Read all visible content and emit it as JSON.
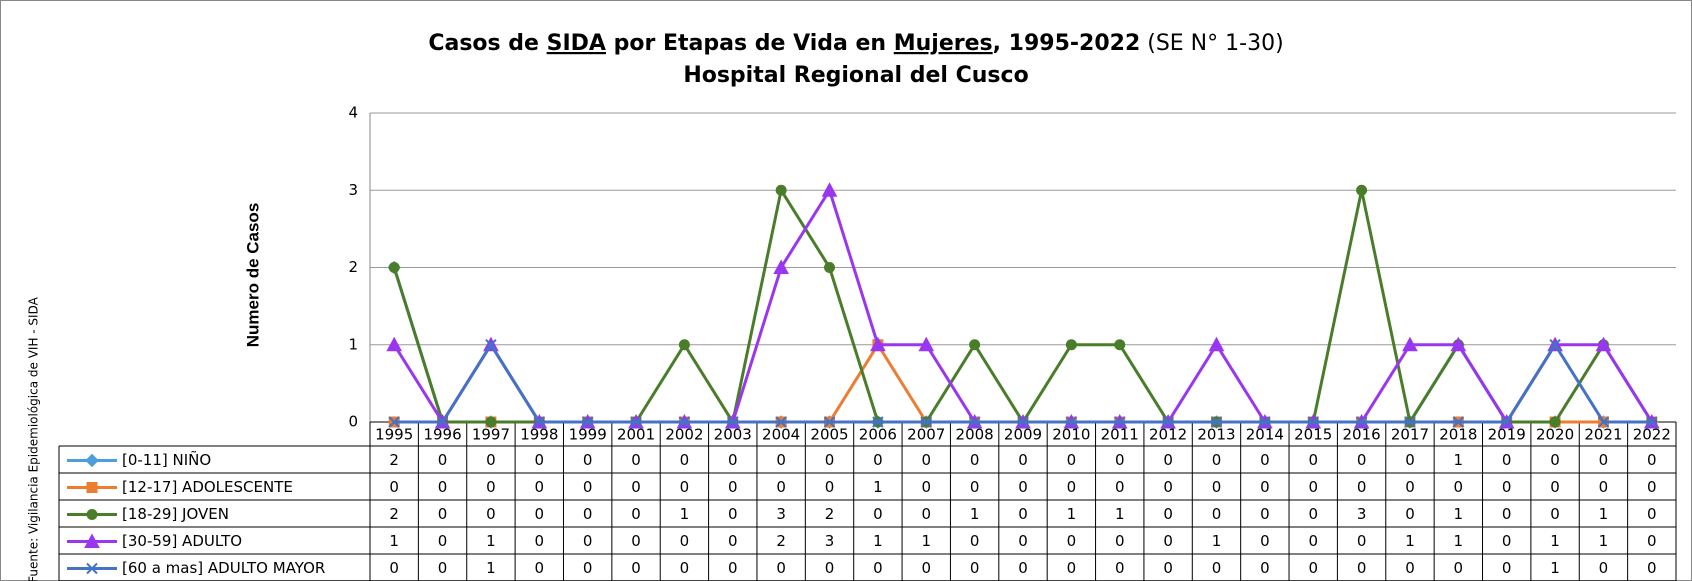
{
  "chart_data": {
    "type": "line",
    "title_segments": [
      "Casos de ",
      "SIDA",
      " por Etapas de Vida en ",
      "Mujeres",
      ", 1995-2022",
      " (SE N° 1-30)"
    ],
    "subtitle": "Hospital Regional del Cusco",
    "y_label": "Numero de Casos",
    "source": "Fuente: Vigilancia Epidemiológica de VIH - SIDA",
    "categories": [
      "1995",
      "1996",
      "1997",
      "1998",
      "1999",
      "2001",
      "2002",
      "2003",
      "2004",
      "2005",
      "2006",
      "2007",
      "2008",
      "2009",
      "2010",
      "2011",
      "2012",
      "2013",
      "2014",
      "2015",
      "2016",
      "2017",
      "2018",
      "2019",
      "2020",
      "2021",
      "2022"
    ],
    "ylim": [
      0,
      4
    ],
    "yticks": [
      0,
      1,
      2,
      3,
      4
    ],
    "grid": true,
    "series": [
      {
        "name": "[0-11] NIÑO",
        "color": "#4a9fdc",
        "marker": "diamond",
        "values": [
          2,
          0,
          0,
          0,
          0,
          0,
          0,
          0,
          0,
          0,
          0,
          0,
          0,
          0,
          0,
          0,
          0,
          0,
          0,
          0,
          0,
          0,
          1,
          0,
          0,
          0,
          0
        ]
      },
      {
        "name": "[12-17] ADOLESCENTE",
        "color": "#ed7d31",
        "marker": "square",
        "values": [
          0,
          0,
          0,
          0,
          0,
          0,
          0,
          0,
          0,
          0,
          1,
          0,
          0,
          0,
          0,
          0,
          0,
          0,
          0,
          0,
          0,
          0,
          0,
          0,
          0,
          0,
          0
        ]
      },
      {
        "name": "[18-29] JOVEN",
        "color": "#4a7d2a",
        "marker": "circle",
        "values": [
          2,
          0,
          0,
          0,
          0,
          0,
          1,
          0,
          3,
          2,
          0,
          0,
          1,
          0,
          1,
          1,
          0,
          0,
          0,
          0,
          3,
          0,
          1,
          0,
          0,
          1,
          0
        ]
      },
      {
        "name": "[30-59] ADULTO",
        "color": "#9b36f0",
        "marker": "triangle",
        "values": [
          1,
          0,
          1,
          0,
          0,
          0,
          0,
          0,
          2,
          3,
          1,
          1,
          0,
          0,
          0,
          0,
          0,
          1,
          0,
          0,
          0,
          1,
          1,
          0,
          1,
          1,
          0
        ]
      },
      {
        "name": "[60 a mas] ADULTO MAYOR",
        "color": "#4472c4",
        "marker": "x",
        "values": [
          0,
          0,
          1,
          0,
          0,
          0,
          0,
          0,
          0,
          0,
          0,
          0,
          0,
          0,
          0,
          0,
          0,
          0,
          0,
          0,
          0,
          0,
          0,
          0,
          1,
          0,
          0
        ]
      }
    ]
  }
}
